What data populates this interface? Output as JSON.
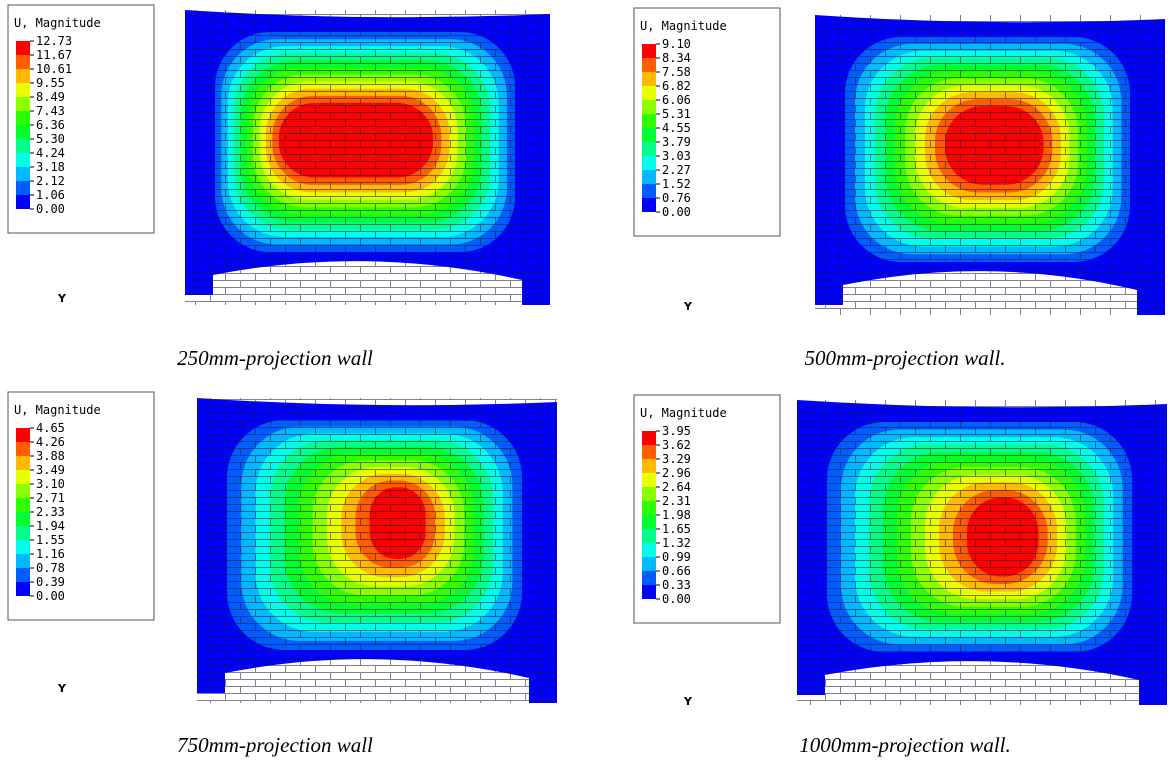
{
  "panels": [
    {
      "legend_title": "U, Magnitude",
      "legend_values": [
        "12.73",
        "11.67",
        "10.61",
        "9.55",
        "8.49",
        "7.43",
        "6.36",
        "5.30",
        "4.24",
        "3.18",
        "2.12",
        "1.06",
        "0.00"
      ],
      "axis_label": "Y",
      "caption": "250mm-projection wall"
    },
    {
      "legend_title": "U, Magnitude",
      "legend_values": [
        "9.10",
        "8.34",
        "7.58",
        "6.82",
        "6.06",
        "5.31",
        "4.55",
        "3.79",
        "3.03",
        "2.27",
        "1.52",
        "0.76",
        "0.00"
      ],
      "axis_label": "Y",
      "caption": "500mm-projection wall."
    },
    {
      "legend_title": "U, Magnitude",
      "legend_values": [
        "4.65",
        "4.26",
        "3.88",
        "3.49",
        "3.10",
        "2.71",
        "2.33",
        "1.94",
        "1.55",
        "1.16",
        "0.78",
        "0.39",
        "0.00"
      ],
      "axis_label": "Y",
      "caption": "750mm-projection wall"
    },
    {
      "legend_title": "U, Magnitude",
      "legend_values": [
        "3.95",
        "3.62",
        "3.29",
        "2.96",
        "2.64",
        "2.31",
        "1.98",
        "1.65",
        "1.32",
        "0.99",
        "0.66",
        "0.33",
        "0.00"
      ],
      "axis_label": "Y",
      "caption": "1000mm-projection wall."
    }
  ]
}
